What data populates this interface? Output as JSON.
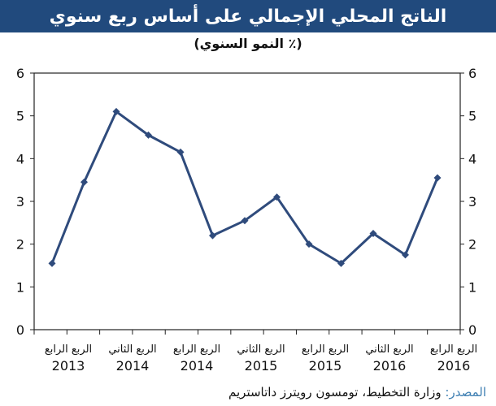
{
  "title": "الناتج المحلي الإجمالي على أساس ربع سنوي",
  "subtitle": "(٪ النمو السنوي)",
  "source": {
    "label": "المصدر:",
    "text": " وزارة التخطيط، تومسون رويترز داتاستريم"
  },
  "colors": {
    "title_bg": "#214a7d",
    "series": "#2f4b7c",
    "axis": "#222222",
    "source_label": "#3f7fb2"
  },
  "chart_data": {
    "type": "line",
    "title": "الناتج المحلي الإجمالي على أساس ربع سنوي",
    "subtitle": "(٪ النمو السنوي)",
    "ylim": [
      0,
      6
    ],
    "yticks": [
      0,
      1,
      2,
      3,
      4,
      5,
      6
    ],
    "y_axes": "left-and-right",
    "grid": false,
    "legend": "none",
    "x_tick_labels": [
      {
        "quarter": "الربع الرابع",
        "year": "2013"
      },
      {
        "quarter": "الربع الثاني",
        "year": "2014"
      },
      {
        "quarter": "الربع الرابع",
        "year": "2014"
      },
      {
        "quarter": "الربع الثاني",
        "year": "2015"
      },
      {
        "quarter": "الربع الرابع",
        "year": "2015"
      },
      {
        "quarter": "الربع الثاني",
        "year": "2016"
      },
      {
        "quarter": "الربع الرابع",
        "year": "2016"
      }
    ],
    "series": [
      {
        "values": [
          1.55,
          3.45,
          5.1,
          4.55,
          4.15,
          2.2,
          2.55,
          3.1,
          2.0,
          1.55,
          2.25,
          1.75,
          3.55
        ]
      }
    ]
  }
}
